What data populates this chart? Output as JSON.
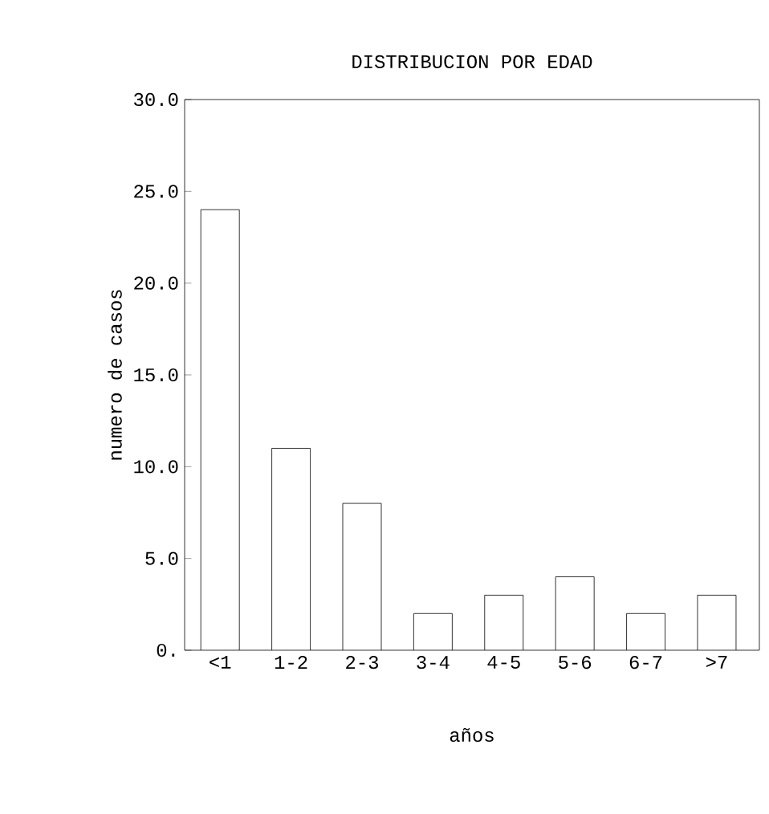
{
  "chart_data": {
    "type": "bar",
    "title": "DISTRIBUCION POR EDAD",
    "xlabel": "años",
    "ylabel": "numero de casos",
    "categories": [
      "<1",
      "1-2",
      "2-3",
      "3-4",
      "4-5",
      "5-6",
      "6-7",
      ">7"
    ],
    "values": [
      24,
      11,
      8,
      2,
      3,
      4,
      2,
      3
    ],
    "color": "#ffffff",
    "ylim": [
      0,
      30
    ],
    "yticks": [
      {
        "value": 0,
        "label": "0."
      },
      {
        "value": 5,
        "label": "5.0"
      },
      {
        "value": 10,
        "label": "10.0"
      },
      {
        "value": 15,
        "label": "15.0"
      },
      {
        "value": 20,
        "label": "20.0"
      },
      {
        "value": 25,
        "label": "25.0"
      },
      {
        "value": 30,
        "label": "30.0"
      }
    ],
    "grid": false
  }
}
